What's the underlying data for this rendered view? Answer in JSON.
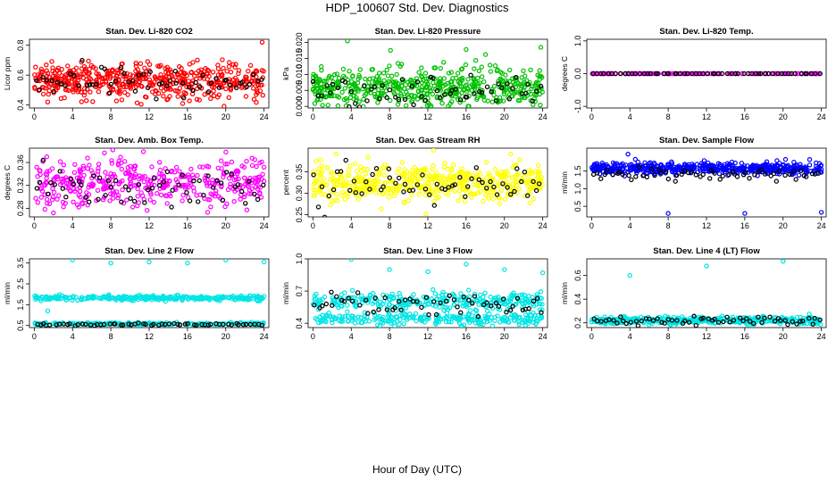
{
  "figure": {
    "title": "HDP_100607  Std. Dev. Diagnostics",
    "xlabel": "Hour of Day (UTC)"
  },
  "chart_data": [
    {
      "type": "scatter",
      "title": "Stan. Dev. Li-820 CO2",
      "ylabel": "Licor ppm",
      "xlabel": "",
      "xlim": [
        -0.5,
        24.5
      ],
      "ylim": [
        0.38,
        0.84
      ],
      "x_ticks": [
        "0",
        "4",
        "8",
        "12",
        "16",
        "20",
        "24"
      ],
      "y_ticks": [
        "0.4",
        "0.6",
        "0.8"
      ],
      "y_tick_values": [
        0.4,
        0.6,
        0.8
      ],
      "series": [
        {
          "name": "main",
          "color": "#ff0000",
          "n": 520,
          "center": 0.56,
          "spread": 0.06,
          "outliers": [
            [
              23.8,
              0.82
            ],
            [
              15.5,
              0.41
            ],
            [
              1.4,
              0.42
            ]
          ]
        },
        {
          "name": "hourly",
          "color": "#000000",
          "n": 60,
          "center": 0.55,
          "spread": 0.05,
          "outliers": []
        }
      ]
    },
    {
      "type": "scatter",
      "title": "Stan. Dev. Li-820 Pressure",
      "ylabel": "kPa",
      "xlabel": "",
      "xlim": [
        -0.5,
        24.5
      ],
      "ylim": [
        -0.0005,
        0.021
      ],
      "x_ticks": [
        "0",
        "4",
        "8",
        "12",
        "16",
        "20",
        "24"
      ],
      "y_ticks": [
        "0.000",
        "0.005",
        "0.010",
        "0.015",
        "0.020"
      ],
      "y_tick_values": [
        0,
        0.005,
        0.01,
        0.015,
        0.02
      ],
      "series": [
        {
          "name": "main",
          "color": "#00c000",
          "n": 520,
          "center": 0.006,
          "spread": 0.0035,
          "outliers": [
            [
              3.6,
              0.0205
            ],
            [
              8.1,
              0.0175
            ],
            [
              16.0,
              0.0178
            ],
            [
              23.8,
              0.0185
            ],
            [
              3.8,
              0.011
            ]
          ]
        },
        {
          "name": "hourly",
          "color": "#000000",
          "n": 60,
          "center": 0.005,
          "spread": 0.0025,
          "outliers": []
        }
      ]
    },
    {
      "type": "scatter",
      "title": "Stan. Dev. Li-820 Temp.",
      "ylabel": "degrees C",
      "xlabel": "",
      "xlim": [
        -0.5,
        24.5
      ],
      "ylim": [
        -1.05,
        1.05
      ],
      "x_ticks": [
        "0",
        "4",
        "8",
        "12",
        "16",
        "20",
        "24"
      ],
      "y_ticks": [
        "-1.0",
        "0.0",
        "1.0"
      ],
      "y_tick_values": [
        -1,
        0,
        1
      ],
      "series": [
        {
          "name": "main",
          "color": "#ff00ff",
          "n": 160,
          "center": 0.0,
          "spread": 0.0,
          "outliers": []
        },
        {
          "name": "hourly",
          "color": "#000000",
          "n": 60,
          "center": 0.0,
          "spread": 0.0,
          "outliers": []
        }
      ]
    },
    {
      "type": "scatter",
      "title": "Stan. Dev. Amb. Box Temp.",
      "ylabel": "degrees C",
      "xlabel": "",
      "xlim": [
        -0.5,
        24.5
      ],
      "ylim": [
        0.265,
        0.385
      ],
      "x_ticks": [
        "0",
        "4",
        "8",
        "12",
        "16",
        "20",
        "24"
      ],
      "y_ticks": [
        "0.28",
        "0.32",
        "0.36"
      ],
      "y_tick_values": [
        0.28,
        0.32,
        0.36
      ],
      "series": [
        {
          "name": "main",
          "color": "#ff00ff",
          "n": 420,
          "center": 0.325,
          "spread": 0.02,
          "outliers": [
            [
              8.2,
              0.382
            ],
            [
              2.0,
              0.272
            ],
            [
              11.4,
              0.379
            ]
          ]
        },
        {
          "name": "hourly",
          "color": "#000000",
          "n": 60,
          "center": 0.32,
          "spread": 0.018,
          "outliers": []
        }
      ]
    },
    {
      "type": "scatter",
      "title": "Stan. Dev. Gas Stream RH",
      "ylabel": "percent",
      "xlabel": "",
      "xlim": [
        -0.5,
        24.5
      ],
      "ylim": [
        0.245,
        0.405
      ],
      "x_ticks": [
        "0",
        "4",
        "8",
        "12",
        "16",
        "20",
        "24"
      ],
      "y_ticks": [
        "0.25",
        "0.30",
        "0.35"
      ],
      "y_tick_values": [
        0.25,
        0.3,
        0.35
      ],
      "series": [
        {
          "name": "main",
          "color": "#ffff00",
          "n": 520,
          "center": 0.325,
          "spread": 0.022,
          "outliers": [
            [
              12.6,
              0.4
            ],
            [
              11.8,
              0.252
            ]
          ]
        },
        {
          "name": "hourly",
          "color": "#000000",
          "n": 60,
          "center": 0.32,
          "spread": 0.02,
          "outliers": []
        }
      ]
    },
    {
      "type": "scatter",
      "title": "Stan. Dev. Sample Flow",
      "ylabel": "ml/min",
      "xlabel": "",
      "xlim": [
        -0.5,
        24.5
      ],
      "ylim": [
        0.2,
        2.15
      ],
      "x_ticks": [
        "0",
        "4",
        "8",
        "12",
        "16",
        "20",
        "24"
      ],
      "y_ticks": [
        "0.5",
        "1.0",
        "1.5"
      ],
      "y_tick_values": [
        0.5,
        1.0,
        1.5
      ],
      "series": [
        {
          "name": "main",
          "color": "#0000ff",
          "n": 520,
          "center": 1.58,
          "spread": 0.08,
          "outliers": [
            [
              8.0,
              0.3
            ],
            [
              16.0,
              0.3
            ],
            [
              24.0,
              0.33
            ],
            [
              3.8,
              1.98
            ]
          ]
        },
        {
          "name": "hourly",
          "color": "#000000",
          "n": 60,
          "center": 1.42,
          "spread": 0.1,
          "outliers": []
        }
      ]
    },
    {
      "type": "scatter",
      "title": "Stan. Dev. Line 2 Flow",
      "ylabel": "ml/min",
      "xlabel": "",
      "xlim": [
        -0.5,
        24.5
      ],
      "ylim": [
        0.4,
        3.7
      ],
      "x_ticks": [
        "0",
        "4",
        "8",
        "12",
        "16",
        "20",
        "24"
      ],
      "y_ticks": [
        "0.5",
        "1.5",
        "2.5",
        "3.5"
      ],
      "y_tick_values": [
        0.5,
        1.5,
        2.5,
        3.5
      ],
      "series": [
        {
          "name": "high",
          "color": "#00e5e5",
          "n": 300,
          "center": 1.82,
          "spread": 0.06,
          "outliers": [
            [
              4.0,
              3.65
            ],
            [
              8.0,
              3.5
            ],
            [
              12.0,
              3.55
            ],
            [
              16.0,
              3.5
            ],
            [
              20.0,
              3.65
            ],
            [
              24.0,
              3.55
            ],
            [
              1.4,
              1.2
            ]
          ]
        },
        {
          "name": "low",
          "color": "#00e5e5",
          "n": 220,
          "center": 0.58,
          "spread": 0.03,
          "outliers": []
        },
        {
          "name": "hourly",
          "color": "#000000",
          "n": 60,
          "center": 0.55,
          "spread": 0.03,
          "outliers": []
        }
      ]
    },
    {
      "type": "scatter",
      "title": "Stan. Dev. Line 3 Flow",
      "ylabel": "ml/min",
      "xlabel": "",
      "xlim": [
        -0.5,
        24.5
      ],
      "ylim": [
        0.36,
        1.0
      ],
      "x_ticks": [
        "0",
        "4",
        "8",
        "12",
        "16",
        "20",
        "24"
      ],
      "y_ticks": [
        "0.4",
        "0.7",
        "1.0"
      ],
      "y_tick_values": [
        0.4,
        0.7,
        1.0
      ],
      "series": [
        {
          "name": "upper",
          "color": "#00e5e5",
          "n": 280,
          "center": 0.61,
          "spread": 0.04,
          "outliers": [
            [
              4.0,
              0.995
            ],
            [
              8.0,
              0.9
            ],
            [
              12.0,
              0.88
            ],
            [
              16.0,
              0.95
            ],
            [
              20.0,
              0.9
            ],
            [
              24.0,
              0.87
            ]
          ]
        },
        {
          "name": "lower",
          "color": "#00e5e5",
          "n": 260,
          "center": 0.44,
          "spread": 0.03,
          "outliers": []
        },
        {
          "name": "hourly",
          "color": "#000000",
          "n": 60,
          "center": 0.58,
          "spread": 0.05,
          "outliers": []
        }
      ]
    },
    {
      "type": "scatter",
      "title": "Stan. Dev. Line 4 (LT) Flow",
      "ylabel": "ml/min",
      "xlabel": "",
      "xlim": [
        -0.5,
        24.5
      ],
      "ylim": [
        0.16,
        0.74
      ],
      "x_ticks": [
        "0",
        "4",
        "8",
        "12",
        "16",
        "20",
        "24"
      ],
      "y_ticks": [
        "0.2",
        "0.4",
        "0.6"
      ],
      "y_tick_values": [
        0.2,
        0.4,
        0.6
      ],
      "series": [
        {
          "name": "main",
          "color": "#00e5e5",
          "n": 420,
          "center": 0.22,
          "spread": 0.015,
          "outliers": [
            [
              4.0,
              0.6
            ],
            [
              12.0,
              0.68
            ],
            [
              20.0,
              0.72
            ]
          ]
        },
        {
          "name": "hourly",
          "color": "#000000",
          "n": 60,
          "center": 0.22,
          "spread": 0.015,
          "outliers": []
        }
      ]
    }
  ]
}
